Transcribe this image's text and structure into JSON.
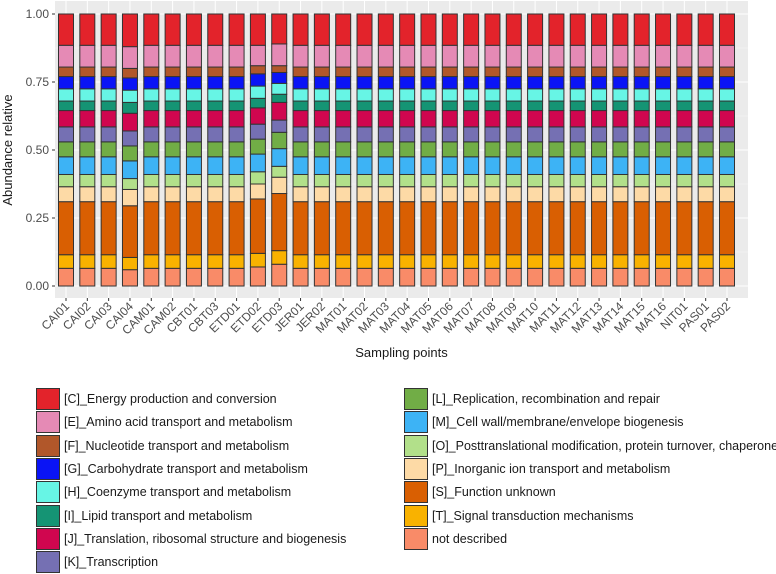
{
  "chart_data": {
    "type": "bar",
    "stacked": true,
    "xlabel": "Sampling points",
    "ylabel": "Abundance relative",
    "ylim": [
      0,
      1
    ],
    "yticks": [
      "0.00",
      "0.25",
      "0.50",
      "0.75",
      "1.00"
    ],
    "categories": [
      "CAI01",
      "CAI02",
      "CAI03",
      "CAI04",
      "CAM01",
      "CAM02",
      "CBT01",
      "CBT03",
      "ETD01",
      "ETD02",
      "ETD03",
      "JER01",
      "JER02",
      "MAT01",
      "MAT02",
      "MAT03",
      "MAT04",
      "MAT05",
      "MAT06",
      "MAT07",
      "MAT08",
      "MAT09",
      "MAT10",
      "MAT11",
      "MAT12",
      "MAT13",
      "MAT14",
      "MAT15",
      "MAT16",
      "NIT01",
      "PAS01",
      "PAS02"
    ],
    "legend_position": "bottom",
    "series": [
      {
        "name": "not described",
        "color": "#F98B68",
        "base": 0.065
      },
      {
        "name": "[T]_Signal transduction mechanisms",
        "color": "#F9B200",
        "base": 0.05
      },
      {
        "name": "[S]_Function unknown",
        "color": "#D95F02",
        "base": 0.195
      },
      {
        "name": "[P]_Inorganic ion transport and metabolism",
        "color": "#FDDAA6",
        "base": 0.055
      },
      {
        "name": "[O]_Posttranslational modification, protein turnover, chaperones",
        "color": "#B2E08A",
        "base": 0.045
      },
      {
        "name": "[M]_Cell wall/membrane/envelope biogenesis",
        "color": "#3DB3F5",
        "base": 0.065
      },
      {
        "name": "[L]_Replication, recombination and repair",
        "color": "#71AD46",
        "base": 0.055
      },
      {
        "name": "[K]_Transcription",
        "color": "#7570B3",
        "base": 0.055
      },
      {
        "name": "[J]_Translation, ribosomal structure and biogenesis",
        "color": "#D0064F",
        "base": 0.06
      },
      {
        "name": "[I]_Lipid transport and metabolism",
        "color": "#159474",
        "base": 0.035
      },
      {
        "name": "[H]_Coenzyme transport and metabolism",
        "color": "#67F5E5",
        "base": 0.045
      },
      {
        "name": "[G]_Carbohydrate transport and metabolism",
        "color": "#0A14F5",
        "base": 0.045
      },
      {
        "name": "[F]_Nucleotide transport and metabolism",
        "color": "#B1572A",
        "base": 0.035
      },
      {
        "name": "[E]_Amino acid transport and metabolism",
        "color": "#E58AB5",
        "base": 0.08
      },
      {
        "name": "[C]_Energy production and conversion",
        "color": "#E3232B",
        "base": 0.115
      }
    ],
    "overrides": {
      "ETD03": [
        0.08,
        0.05,
        0.21,
        0.06,
        0.04,
        0.065,
        0.06,
        0.045,
        0.065,
        0.03,
        0.04,
        0.04,
        0.025,
        0.08,
        0.11
      ],
      "ETD02": [
        0.07,
        0.05,
        0.2,
        0.055,
        0.045,
        0.065,
        0.055,
        0.055,
        0.06,
        0.035,
        0.045,
        0.045,
        0.03,
        0.075,
        0.115
      ],
      "CAI04": [
        0.06,
        0.045,
        0.19,
        0.06,
        0.04,
        0.065,
        0.055,
        0.055,
        0.065,
        0.04,
        0.045,
        0.045,
        0.035,
        0.08,
        0.12
      ]
    }
  },
  "legend_col1": [
    "[C]_Energy production and conversion",
    "[E]_Amino acid transport and metabolism",
    "[F]_Nucleotide transport and metabolism",
    "[G]_Carbohydrate transport and metabolism",
    "[H]_Coenzyme transport and metabolism",
    "[I]_Lipid transport and metabolism",
    "[J]_Translation, ribosomal structure and biogenesis",
    "[K]_Transcription"
  ],
  "legend_col2": [
    "[L]_Replication, recombination and repair",
    "[M]_Cell wall/membrane/envelope biogenesis",
    "[O]_Posttranslational modification, protein turnover, chaperones",
    "[P]_Inorganic ion transport and metabolism",
    "[S]_Function unknown",
    "[T]_Signal transduction mechanisms",
    "not described"
  ]
}
